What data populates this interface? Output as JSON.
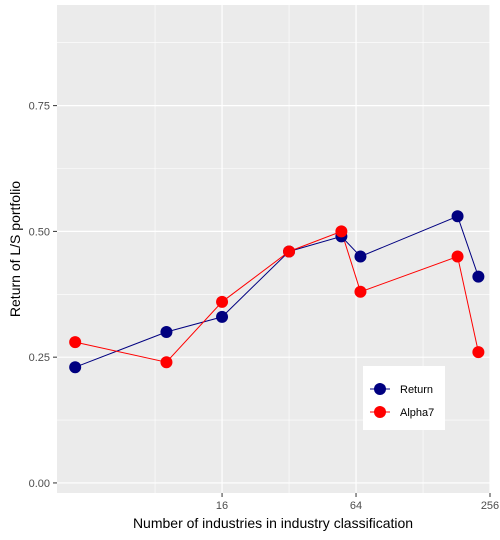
{
  "chart_data": {
    "type": "line",
    "xlabel": "Number of industries in industry classification",
    "ylabel": "Return of L/S portfolio",
    "x_scale": "log2",
    "xlim": [
      2.9,
      256
    ],
    "ylim": [
      -0.02,
      0.95
    ],
    "x_ticks": [
      16,
      64,
      256
    ],
    "x_tick_labels": [
      "16",
      "64",
      "256"
    ],
    "y_ticks": [
      0.0,
      0.25,
      0.5,
      0.75
    ],
    "y_tick_labels": [
      "0.00",
      "0.25",
      "0.50",
      "0.75"
    ],
    "grid": true,
    "legend_position": "bottom-right",
    "series": [
      {
        "name": "Return",
        "color": "#000080",
        "x": [
          3.5,
          9,
          16,
          32,
          55,
          67,
          183,
          227
        ],
        "y": [
          0.23,
          0.3,
          0.33,
          0.46,
          0.49,
          0.45,
          0.53,
          0.41
        ]
      },
      {
        "name": "Alpha7",
        "color": "#ff0000",
        "x": [
          3.5,
          9,
          16,
          32,
          55,
          67,
          183,
          227
        ],
        "y": [
          0.28,
          0.24,
          0.36,
          0.46,
          0.5,
          0.38,
          0.45,
          0.26
        ]
      }
    ]
  }
}
